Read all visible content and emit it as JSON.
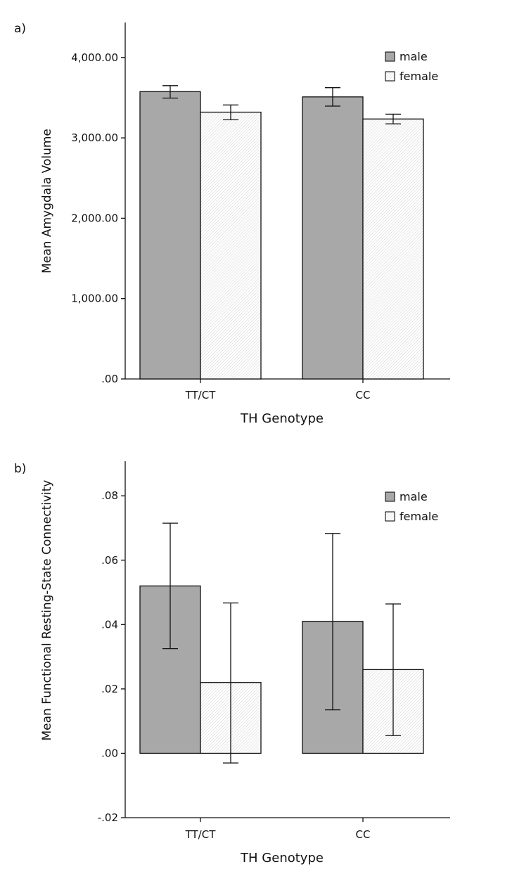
{
  "chart_data": [
    {
      "panel_label": "a)",
      "type": "bar",
      "categories": [
        "TT/CT",
        "CC"
      ],
      "series": [
        {
          "name": "male",
          "values": [
            3575,
            3510
          ],
          "error_low": [
            3495,
            3395
          ],
          "error_high": [
            3650,
            3625
          ]
        },
        {
          "name": "female",
          "values": [
            3320,
            3235
          ],
          "error_low": [
            3225,
            3175
          ],
          "error_high": [
            3410,
            3295
          ]
        }
      ],
      "xlabel": "TH Genotype",
      "ylabel": "Mean Amygdala Volume",
      "ylim": [
        0,
        4400
      ],
      "yticks": [
        0,
        1000,
        2000,
        3000,
        4000
      ],
      "ytick_labels": [
        ".00",
        "1,000.00",
        "2,000.00",
        "3,000.00",
        "4,000.00"
      ],
      "legend_position": "top-right",
      "grid": false
    },
    {
      "panel_label": "b)",
      "type": "bar",
      "categories": [
        "TT/CT",
        "CC"
      ],
      "series": [
        {
          "name": "male",
          "values": [
            0.052,
            0.041
          ],
          "error_low": [
            0.0325,
            0.0135
          ],
          "error_high": [
            0.0715,
            0.0683
          ]
        },
        {
          "name": "female",
          "values": [
            0.022,
            0.026
          ],
          "error_low": [
            -0.003,
            0.0055
          ],
          "error_high": [
            0.0467,
            0.0464
          ]
        }
      ],
      "xlabel": "TH Genotype",
      "ylabel": "Mean Functional Resting-State Connectivity",
      "ylim": [
        -0.02,
        0.092
      ],
      "yticks": [
        -0.02,
        0,
        0.02,
        0.04,
        0.06,
        0.08
      ],
      "ytick_labels": [
        "-.02",
        ".00",
        ".02",
        ".04",
        ".06",
        ".08"
      ],
      "legend_position": "top-right",
      "grid": false
    }
  ],
  "colors": {
    "male_fill": "#a8a8a8",
    "female_fill": "#ffffff",
    "axis": "#111111"
  }
}
